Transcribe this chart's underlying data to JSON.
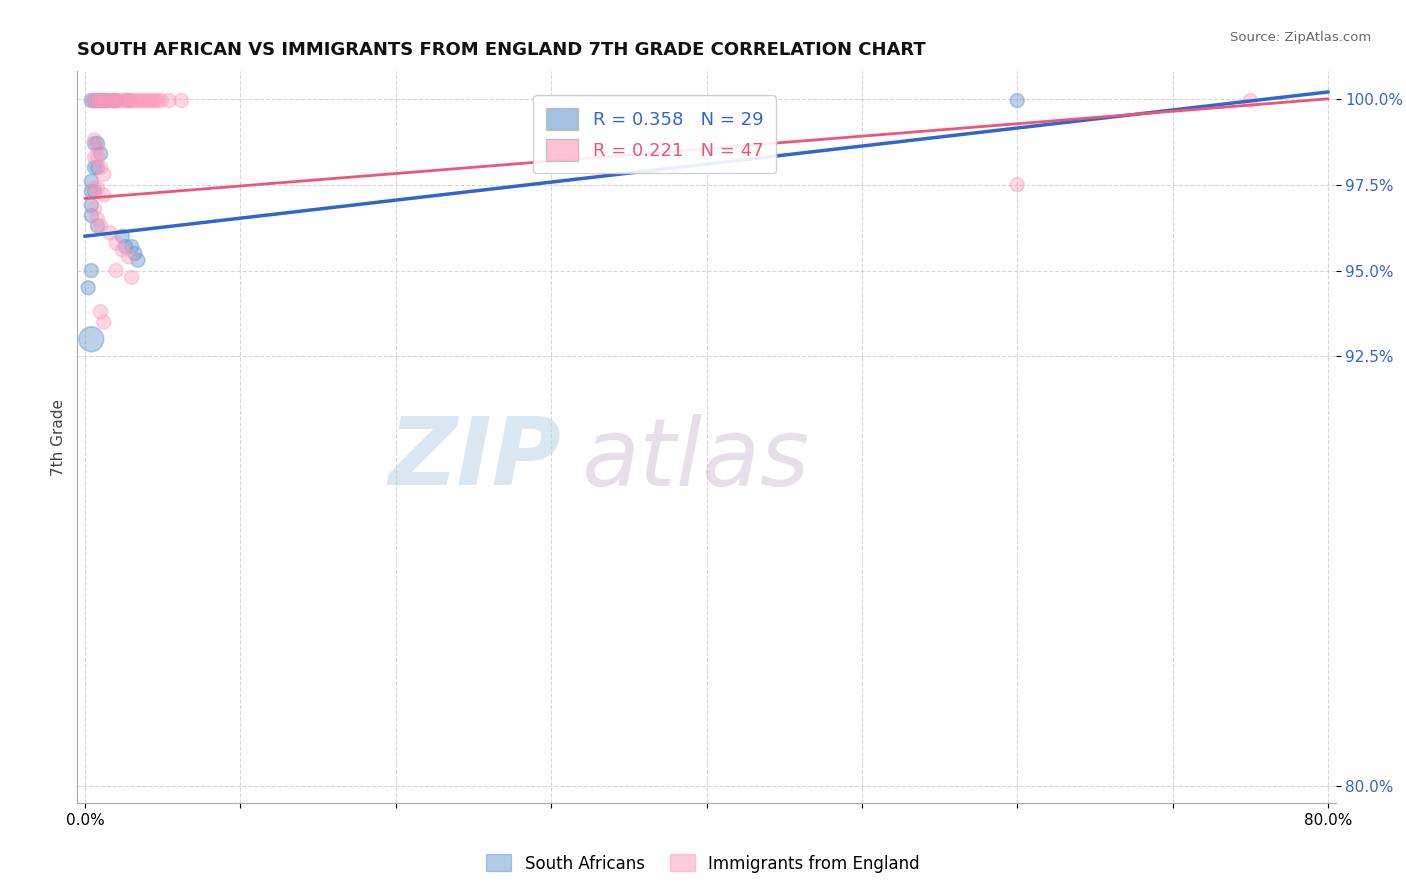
{
  "title": "SOUTH AFRICAN VS IMMIGRANTS FROM ENGLAND 7TH GRADE CORRELATION CHART",
  "source": "Source: ZipAtlas.com",
  "ylabel": "7th Grade",
  "xlim": [
    -0.005,
    0.805
  ],
  "ylim": [
    0.795,
    1.008
  ],
  "xticks": [
    0.0,
    0.1,
    0.2,
    0.3,
    0.4,
    0.5,
    0.6,
    0.7,
    0.8
  ],
  "xticklabels": [
    "0.0%",
    "",
    "",
    "",
    "",
    "",
    "",
    "",
    "80.0%"
  ],
  "yticks": [
    0.8,
    0.925,
    0.95,
    0.975,
    1.0
  ],
  "yticklabels": [
    "80.0%",
    "92.5%",
    "95.0%",
    "97.5%",
    "100.0%"
  ],
  "blue_R": 0.358,
  "blue_N": 29,
  "pink_R": 0.221,
  "pink_N": 47,
  "blue_color": "#6699CC",
  "pink_color": "#FF99BB",
  "blue_line_color": "#3366CC",
  "pink_line_color": "#EE5577",
  "legend_label_blue": "South Africans",
  "legend_label_pink": "Immigrants from England",
  "blue_scatter": [
    [
      0.004,
      0.9995
    ],
    [
      0.006,
      0.9995
    ],
    [
      0.008,
      0.9995
    ],
    [
      0.01,
      0.9995
    ],
    [
      0.012,
      0.9995
    ],
    [
      0.014,
      0.9995
    ],
    [
      0.018,
      0.9995
    ],
    [
      0.02,
      0.9995
    ],
    [
      0.028,
      0.9995
    ],
    [
      0.006,
      0.987
    ],
    [
      0.008,
      0.987
    ],
    [
      0.01,
      0.984
    ],
    [
      0.006,
      0.98
    ],
    [
      0.008,
      0.98
    ],
    [
      0.004,
      0.976
    ],
    [
      0.004,
      0.973
    ],
    [
      0.006,
      0.973
    ],
    [
      0.004,
      0.969
    ],
    [
      0.004,
      0.966
    ],
    [
      0.008,
      0.963
    ],
    [
      0.024,
      0.96
    ],
    [
      0.026,
      0.957
    ],
    [
      0.004,
      0.95
    ],
    [
      0.004,
      0.93
    ],
    [
      0.6,
      0.9995
    ],
    [
      0.03,
      0.957
    ],
    [
      0.032,
      0.955
    ],
    [
      0.034,
      0.953
    ],
    [
      0.002,
      0.945
    ]
  ],
  "blue_sizes": [
    100,
    100,
    100,
    100,
    100,
    100,
    100,
    100,
    100,
    100,
    100,
    100,
    100,
    100,
    100,
    100,
    100,
    100,
    100,
    100,
    100,
    100,
    100,
    320,
    100,
    100,
    100,
    100,
    100
  ],
  "pink_scatter": [
    [
      0.005,
      0.9995
    ],
    [
      0.007,
      0.9995
    ],
    [
      0.009,
      0.9995
    ],
    [
      0.011,
      0.9995
    ],
    [
      0.013,
      0.9995
    ],
    [
      0.015,
      0.9995
    ],
    [
      0.017,
      0.9995
    ],
    [
      0.019,
      0.9995
    ],
    [
      0.021,
      0.9995
    ],
    [
      0.023,
      0.9995
    ],
    [
      0.025,
      0.9995
    ],
    [
      0.027,
      0.9995
    ],
    [
      0.029,
      0.9995
    ],
    [
      0.031,
      0.9995
    ],
    [
      0.033,
      0.9995
    ],
    [
      0.035,
      0.9995
    ],
    [
      0.037,
      0.9995
    ],
    [
      0.039,
      0.9995
    ],
    [
      0.041,
      0.9995
    ],
    [
      0.043,
      0.9995
    ],
    [
      0.045,
      0.9995
    ],
    [
      0.047,
      0.9995
    ],
    [
      0.049,
      0.9995
    ],
    [
      0.054,
      0.9995
    ],
    [
      0.062,
      0.9995
    ],
    [
      0.75,
      0.9995
    ],
    [
      0.006,
      0.988
    ],
    [
      0.008,
      0.986
    ],
    [
      0.006,
      0.983
    ],
    [
      0.008,
      0.983
    ],
    [
      0.01,
      0.98
    ],
    [
      0.012,
      0.978
    ],
    [
      0.006,
      0.974
    ],
    [
      0.008,
      0.974
    ],
    [
      0.012,
      0.972
    ],
    [
      0.006,
      0.968
    ],
    [
      0.008,
      0.965
    ],
    [
      0.01,
      0.963
    ],
    [
      0.016,
      0.961
    ],
    [
      0.02,
      0.958
    ],
    [
      0.024,
      0.956
    ],
    [
      0.028,
      0.954
    ],
    [
      0.6,
      0.975
    ],
    [
      0.02,
      0.95
    ],
    [
      0.03,
      0.948
    ],
    [
      0.01,
      0.938
    ],
    [
      0.012,
      0.935
    ]
  ],
  "pink_sizes": [
    100,
    100,
    100,
    100,
    100,
    100,
    100,
    100,
    100,
    100,
    100,
    100,
    100,
    100,
    100,
    100,
    100,
    100,
    100,
    100,
    100,
    100,
    100,
    100,
    100,
    100,
    100,
    100,
    100,
    100,
    100,
    100,
    100,
    100,
    100,
    100,
    100,
    100,
    100,
    100,
    100,
    100,
    100,
    100,
    100,
    100,
    100
  ],
  "watermark_zip": "ZIP",
  "watermark_atlas": "atlas",
  "background_color": "#FFFFFF",
  "grid_color": "#CCCCCC",
  "blue_line_x": [
    0.0,
    0.8
  ],
  "blue_line_y": [
    0.96,
    1.002
  ],
  "pink_line_x": [
    0.0,
    0.8
  ],
  "pink_line_y": [
    0.971,
    1.0
  ]
}
